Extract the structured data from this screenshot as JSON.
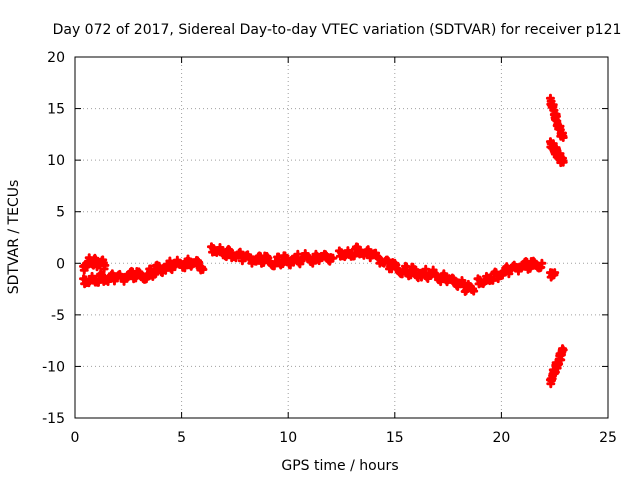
{
  "chart_data": {
    "type": "scatter",
    "title": "Day 072 of 2017, Sidereal Day-to-day VTEC variation (SDTVAR) for receiver p121",
    "xlabel": "GPS time / hours",
    "ylabel": "SDTVAR / TECUs",
    "xlim": [
      0,
      25
    ],
    "ylim": [
      -15,
      20
    ],
    "xticks": [
      0,
      5,
      10,
      15,
      20,
      25
    ],
    "yticks": [
      -15,
      -10,
      -5,
      0,
      5,
      10,
      15,
      20
    ],
    "grid": true,
    "marker": "plus",
    "color": "#ff0000",
    "series": [
      {
        "values": [
          [
            0.4,
            -1.5
          ],
          [
            0.7,
            -1.7
          ],
          [
            1.0,
            -1.6
          ],
          [
            1.3,
            -1.4
          ],
          [
            1.6,
            -1.5
          ],
          [
            1.9,
            -1.3
          ],
          [
            2.2,
            -1.4
          ],
          [
            2.5,
            -1.3
          ],
          [
            2.8,
            -1.2
          ],
          [
            3.1,
            -1.3
          ],
          [
            3.4,
            -1.1
          ],
          [
            3.7,
            -0.8
          ],
          [
            4.0,
            -0.5
          ],
          [
            4.3,
            -0.3
          ],
          [
            4.6,
            -0.2
          ],
          [
            4.9,
            -0.1
          ],
          [
            5.2,
            0.0
          ],
          [
            5.5,
            -0.1
          ],
          [
            5.8,
            0.1
          ],
          [
            6.0,
            -0.6
          ]
        ]
      },
      {
        "values": [
          [
            0.4,
            -0.3
          ],
          [
            0.6,
            0.1
          ],
          [
            0.8,
            0.2
          ],
          [
            1.0,
            0.0
          ],
          [
            1.2,
            0.1
          ],
          [
            1.4,
            -0.2
          ]
        ]
      },
      {
        "values": [
          [
            6.4,
            1.6
          ],
          [
            6.7,
            1.2
          ],
          [
            7.0,
            1.0
          ],
          [
            7.3,
            0.9
          ],
          [
            7.6,
            0.8
          ],
          [
            7.9,
            0.6
          ],
          [
            8.2,
            0.5
          ],
          [
            8.5,
            0.2
          ],
          [
            8.8,
            0.3
          ],
          [
            9.1,
            0.2
          ],
          [
            9.4,
            0.1
          ],
          [
            9.7,
            0.3
          ],
          [
            10.0,
            0.2
          ],
          [
            10.3,
            0.5
          ],
          [
            10.6,
            0.3
          ],
          [
            10.9,
            0.6
          ],
          [
            11.2,
            0.4
          ],
          [
            11.5,
            0.5
          ],
          [
            11.8,
            0.7
          ],
          [
            12.1,
            0.5
          ]
        ]
      },
      {
        "values": [
          [
            12.4,
            1.2
          ],
          [
            12.7,
            0.8
          ],
          [
            13.0,
            0.9
          ],
          [
            13.3,
            1.3
          ],
          [
            13.6,
            1.0
          ],
          [
            13.9,
            0.9
          ],
          [
            14.2,
            0.6
          ],
          [
            14.5,
            0.0
          ],
          [
            14.8,
            -0.3
          ],
          [
            15.1,
            -0.5
          ],
          [
            15.4,
            -0.7
          ],
          [
            15.7,
            -0.8
          ],
          [
            16.0,
            -0.9
          ],
          [
            16.3,
            -1.0
          ],
          [
            16.6,
            -1.1
          ],
          [
            16.9,
            -1.1
          ],
          [
            17.2,
            -1.4
          ],
          [
            17.5,
            -1.6
          ],
          [
            17.8,
            -1.7
          ],
          [
            18.1,
            -2.0
          ],
          [
            18.4,
            -2.4
          ],
          [
            18.7,
            -2.7
          ]
        ]
      },
      {
        "values": [
          [
            18.9,
            -1.5
          ],
          [
            19.2,
            -1.8
          ],
          [
            19.5,
            -1.4
          ],
          [
            19.8,
            -1.2
          ],
          [
            20.1,
            -0.8
          ],
          [
            20.4,
            -0.6
          ],
          [
            20.7,
            -0.4
          ],
          [
            21.0,
            -0.3
          ],
          [
            21.3,
            -0.3
          ],
          [
            21.6,
            -0.2
          ],
          [
            21.9,
            0.0
          ]
        ]
      },
      {
        "values": [
          [
            22.3,
            16.0
          ],
          [
            22.4,
            15.2
          ],
          [
            22.5,
            14.5
          ],
          [
            22.6,
            13.8
          ],
          [
            22.7,
            13.2
          ],
          [
            22.8,
            12.6
          ],
          [
            22.9,
            12.2
          ]
        ]
      },
      {
        "values": [
          [
            22.3,
            11.8
          ],
          [
            22.4,
            11.3
          ],
          [
            22.5,
            11.0
          ],
          [
            22.6,
            10.7
          ],
          [
            22.7,
            10.4
          ],
          [
            22.8,
            10.1
          ],
          [
            22.9,
            9.8
          ]
        ]
      },
      {
        "values": [
          [
            22.3,
            -11.3
          ],
          [
            22.4,
            -10.9
          ],
          [
            22.5,
            -10.4
          ],
          [
            22.6,
            -9.9
          ],
          [
            22.7,
            -9.4
          ],
          [
            22.8,
            -8.9
          ],
          [
            22.9,
            -8.4
          ]
        ]
      },
      {
        "values": [
          [
            22.3,
            -0.9
          ],
          [
            22.5,
            -0.9
          ]
        ]
      }
    ]
  }
}
